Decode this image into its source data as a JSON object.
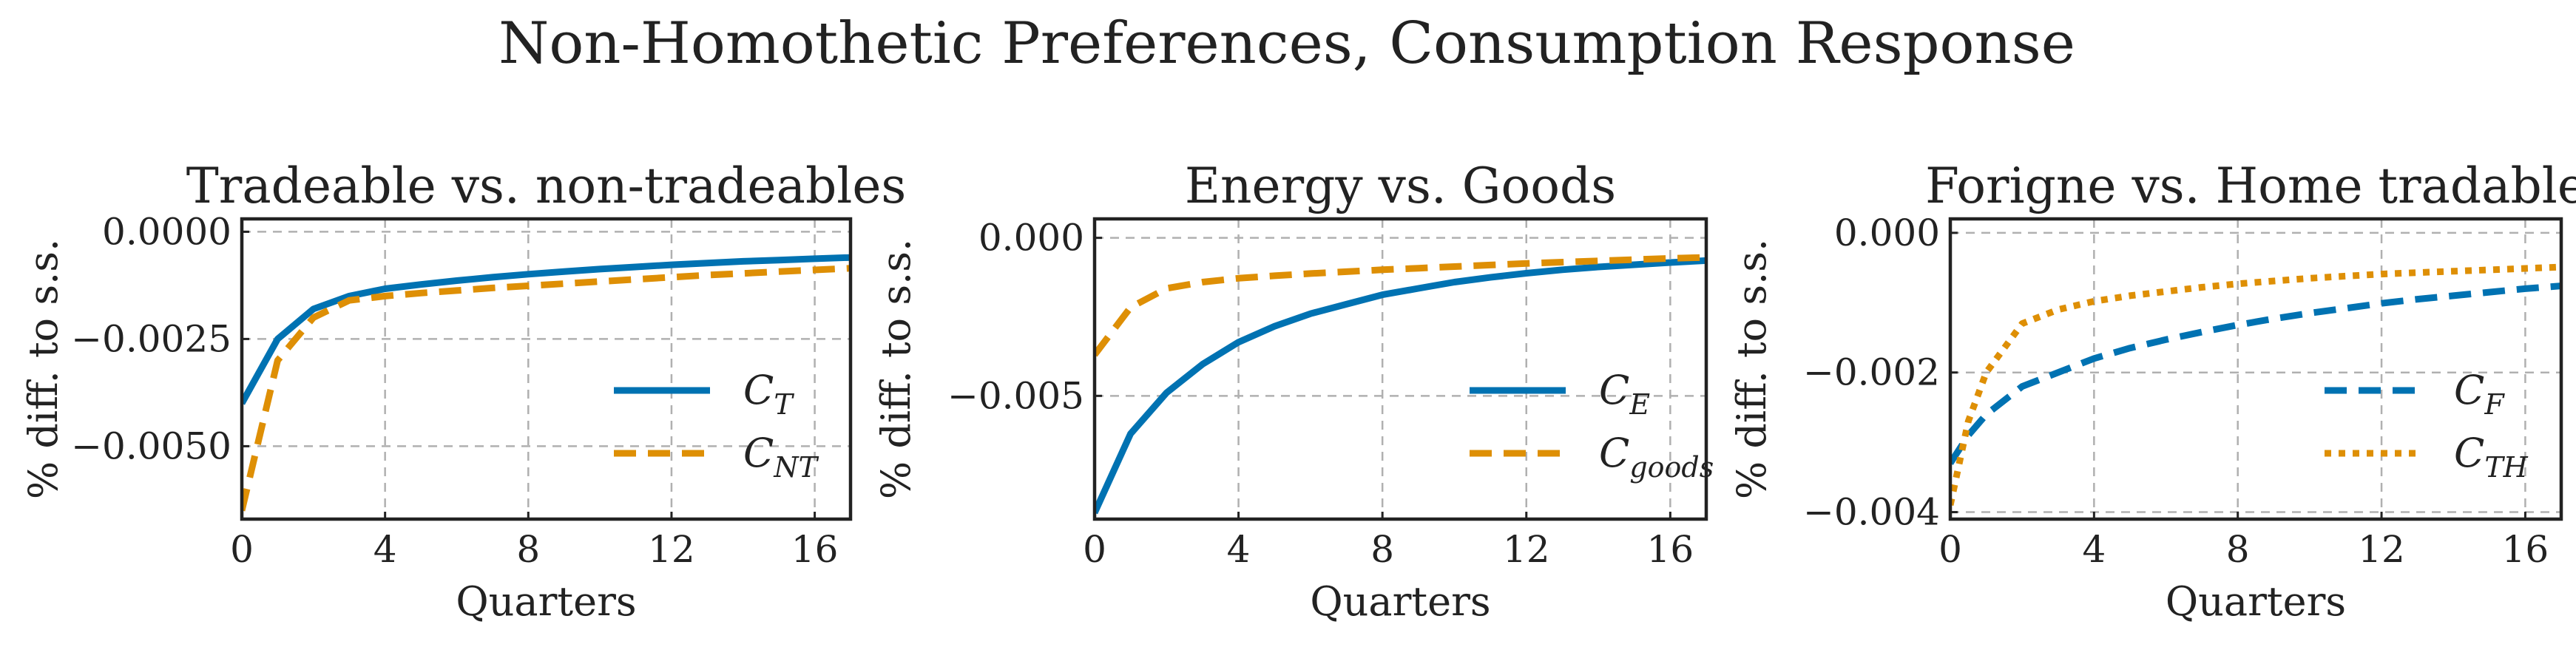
{
  "title": "Non-Homothetic Preferences, Consumption Response",
  "colors": {
    "blue": "#0072b2",
    "orange": "#de8f05"
  },
  "chart_data": [
    {
      "type": "line",
      "title": "Tradeable vs. non-tradeables",
      "xlabel": "Quarters",
      "ylabel": "% diff. to s.s.",
      "xlim": [
        0,
        17
      ],
      "ylim": [
        -0.0067,
        0.0003
      ],
      "xticks": [
        0,
        4,
        8,
        12,
        16
      ],
      "xtick_labels": [
        "0",
        "4",
        "8",
        "12",
        "16"
      ],
      "yticks": [
        0.0,
        -0.0025,
        -0.005
      ],
      "ytick_labels": [
        "0.0000",
        "−0.0025",
        "−0.0050"
      ],
      "legend": "center-right",
      "grid": true,
      "x": [
        0,
        1,
        2,
        3,
        4,
        5,
        6,
        7,
        8,
        9,
        10,
        11,
        12,
        13,
        14,
        15,
        16,
        17
      ],
      "series": [
        {
          "name": "C",
          "sub": "T",
          "color": "#0072b2",
          "dash": "solid",
          "values": [
            -0.004,
            -0.0025,
            -0.0018,
            -0.0015,
            -0.00133,
            -0.00123,
            -0.00114,
            -0.00106,
            -0.00099,
            -0.00093,
            -0.00087,
            -0.00082,
            -0.00077,
            -0.00073,
            -0.00069,
            -0.00066,
            -0.00063,
            -0.0006
          ]
        },
        {
          "name": "C",
          "sub": "NT",
          "color": "#de8f05",
          "dash": "dashed",
          "values": [
            -0.0065,
            -0.003,
            -0.002,
            -0.0016,
            -0.0015,
            -0.00143,
            -0.00137,
            -0.00131,
            -0.00126,
            -0.00121,
            -0.00116,
            -0.00111,
            -0.00106,
            -0.00101,
            -0.00097,
            -0.00093,
            -0.00089,
            -0.00085
          ]
        }
      ]
    },
    {
      "type": "line",
      "title": "Energy vs. Goods",
      "xlabel": "Quarters",
      "ylabel": "% diff. to s.s.",
      "xlim": [
        0,
        17
      ],
      "ylim": [
        -0.0089,
        0.0006
      ],
      "xticks": [
        0,
        4,
        8,
        12,
        16
      ],
      "xtick_labels": [
        "0",
        "4",
        "8",
        "12",
        "16"
      ],
      "yticks": [
        0.0,
        -0.005
      ],
      "ytick_labels": [
        "0.000",
        "−0.005"
      ],
      "legend": "center-right",
      "grid": true,
      "x": [
        0,
        1,
        2,
        3,
        4,
        5,
        6,
        7,
        8,
        9,
        10,
        11,
        12,
        13,
        14,
        15,
        16,
        17
      ],
      "series": [
        {
          "name": "C",
          "sub": "E",
          "color": "#0072b2",
          "dash": "solid",
          "values": [
            -0.0087,
            -0.0062,
            -0.0049,
            -0.004,
            -0.0033,
            -0.0028,
            -0.0024,
            -0.0021,
            -0.0018,
            -0.0016,
            -0.0014,
            -0.00125,
            -0.00112,
            -0.00101,
            -0.00092,
            -0.00085,
            -0.00078,
            -0.00072
          ]
        },
        {
          "name": "C",
          "sub": "goods",
          "color": "#de8f05",
          "dash": "dashed",
          "values": [
            -0.0037,
            -0.0022,
            -0.0016,
            -0.0014,
            -0.00128,
            -0.0012,
            -0.00113,
            -0.00107,
            -0.00101,
            -0.00096,
            -0.00091,
            -0.00086,
            -0.00081,
            -0.00077,
            -0.00073,
            -0.00069,
            -0.00065,
            -0.00062
          ]
        }
      ]
    },
    {
      "type": "line",
      "title": "Forigne vs. Home tradable",
      "xlabel": "Quarters",
      "ylabel": "% diff. to s.s.",
      "xlim": [
        0,
        17
      ],
      "ylim": [
        -0.0041,
        0.0002
      ],
      "xticks": [
        0,
        4,
        8,
        12,
        16
      ],
      "xtick_labels": [
        "0",
        "4",
        "8",
        "12",
        "16"
      ],
      "yticks": [
        0.0,
        -0.002,
        -0.004
      ],
      "ytick_labels": [
        "0.000",
        "−0.002",
        "−0.004"
      ],
      "legend": "center-right",
      "grid": true,
      "x": [
        0,
        0.5,
        1,
        2,
        3,
        4,
        5,
        6,
        7,
        8,
        9,
        10,
        11,
        12,
        13,
        14,
        15,
        16,
        17
      ],
      "series": [
        {
          "name": "C",
          "sub": "F",
          "color": "#0072b2",
          "dash": "dashed",
          "values": [
            -0.0033,
            -0.0029,
            -0.0026,
            -0.0022,
            -0.002,
            -0.0018,
            -0.00165,
            -0.00153,
            -0.00142,
            -0.00132,
            -0.00123,
            -0.00115,
            -0.00108,
            -0.00101,
            -0.00095,
            -0.0009,
            -0.00085,
            -0.0008,
            -0.00076
          ]
        },
        {
          "name": "C",
          "sub": "TH",
          "color": "#de8f05",
          "dash": "dotted",
          "values": [
            -0.0039,
            -0.0027,
            -0.002,
            -0.0013,
            -0.0011,
            -0.00098,
            -0.0009,
            -0.00084,
            -0.00078,
            -0.00073,
            -0.00069,
            -0.00065,
            -0.00062,
            -0.00059,
            -0.00057,
            -0.00055,
            -0.00053,
            -0.00051,
            -0.00049
          ]
        }
      ]
    }
  ]
}
